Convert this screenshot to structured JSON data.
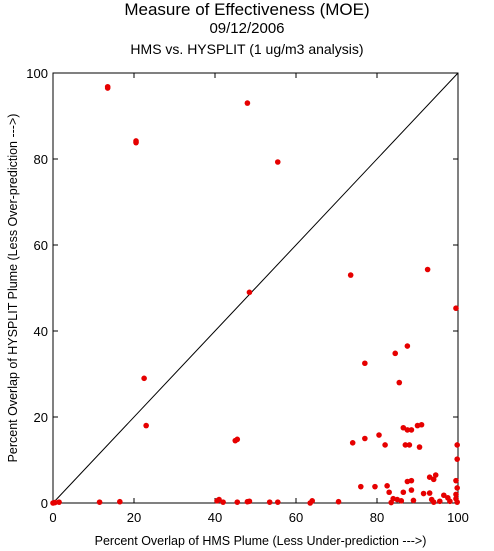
{
  "chart_data": {
    "type": "scatter",
    "title": "Measure of Effectiveness (MOE)",
    "date": "09/12/2006",
    "subtitle": "HMS vs. HYSPLIT  (1 ug/m3 analysis)",
    "xlabel": "Percent Overlap of HMS Plume (Less Under-prediction --->)",
    "ylabel": "Percent Overlap of HYSPLIT Plume (Less Over-prediction --->)",
    "xlim": [
      0,
      100
    ],
    "ylim": [
      0,
      100
    ],
    "xticks": [
      "0",
      "20",
      "40",
      "60",
      "80",
      "100"
    ],
    "yticks": [
      "0",
      "20",
      "40",
      "60",
      "80",
      "100"
    ],
    "reference_line": "y = x",
    "point_color": "#e60000",
    "points": [
      [
        13.5,
        96.5
      ],
      [
        13.5,
        96.8
      ],
      [
        20.5,
        83.8
      ],
      [
        20.5,
        84.2
      ],
      [
        48.0,
        93.0
      ],
      [
        55.5,
        79.3
      ],
      [
        48.5,
        49.0
      ],
      [
        22.5,
        29.0
      ],
      [
        23.0,
        18.0
      ],
      [
        45.0,
        14.5
      ],
      [
        45.5,
        14.8
      ],
      [
        73.5,
        53.0
      ],
      [
        92.5,
        54.3
      ],
      [
        99.5,
        45.3
      ],
      [
        87.5,
        36.5
      ],
      [
        84.5,
        34.8
      ],
      [
        77.0,
        32.5
      ],
      [
        85.5,
        28.0
      ],
      [
        86.5,
        17.5
      ],
      [
        87.5,
        17.0
      ],
      [
        88.5,
        17.0
      ],
      [
        90.0,
        18.0
      ],
      [
        91.0,
        18.2
      ],
      [
        80.5,
        15.8
      ],
      [
        77.0,
        15.0
      ],
      [
        74.0,
        14.0
      ],
      [
        82.0,
        13.5
      ],
      [
        87.0,
        13.5
      ],
      [
        88.0,
        13.5
      ],
      [
        90.5,
        13.0
      ],
      [
        99.8,
        13.5
      ],
      [
        99.8,
        10.2
      ],
      [
        99.5,
        5.2
      ],
      [
        99.8,
        3.5
      ],
      [
        99.5,
        2.0
      ],
      [
        99.5,
        1.0
      ],
      [
        99.8,
        0.2
      ],
      [
        94.5,
        6.5
      ],
      [
        93.0,
        6.0
      ],
      [
        94.0,
        5.5
      ],
      [
        87.5,
        5.0
      ],
      [
        88.5,
        5.2
      ],
      [
        76.0,
        3.8
      ],
      [
        79.5,
        3.8
      ],
      [
        82.5,
        4.0
      ],
      [
        88.5,
        3.0
      ],
      [
        86.5,
        2.5
      ],
      [
        91.5,
        2.2
      ],
      [
        93.0,
        2.3
      ],
      [
        96.5,
        1.8
      ],
      [
        97.5,
        1.2
      ],
      [
        83.0,
        2.5
      ],
      [
        84.0,
        1.0
      ],
      [
        85.0,
        0.8
      ],
      [
        86.0,
        0.5
      ],
      [
        89.0,
        0.6
      ],
      [
        93.5,
        0.8
      ],
      [
        94.0,
        0.2
      ],
      [
        95.5,
        0.4
      ],
      [
        98.0,
        0.4
      ],
      [
        0.0,
        0.0
      ],
      [
        0.5,
        0.1
      ],
      [
        1.5,
        0.2
      ],
      [
        11.5,
        0.2
      ],
      [
        16.5,
        0.3
      ],
      [
        40.5,
        0.5
      ],
      [
        41.0,
        0.8
      ],
      [
        42.0,
        0.2
      ],
      [
        45.5,
        0.2
      ],
      [
        48.0,
        0.3
      ],
      [
        48.5,
        0.4
      ],
      [
        53.5,
        0.2
      ],
      [
        55.5,
        0.2
      ],
      [
        63.5,
        0.0
      ],
      [
        64.0,
        0.5
      ],
      [
        70.5,
        0.3
      ],
      [
        83.5,
        0.1
      ]
    ]
  }
}
